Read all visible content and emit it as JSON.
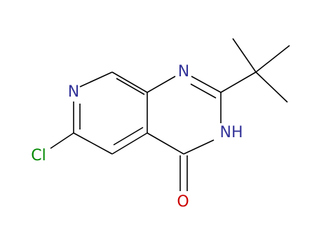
{
  "molecule": {
    "atoms": [
      {
        "label": "N"
      },
      {
        "label": "Cl"
      },
      {
        "label": "N"
      },
      {
        "label": "NH"
      },
      {
        "label": "O"
      }
    ]
  }
}
